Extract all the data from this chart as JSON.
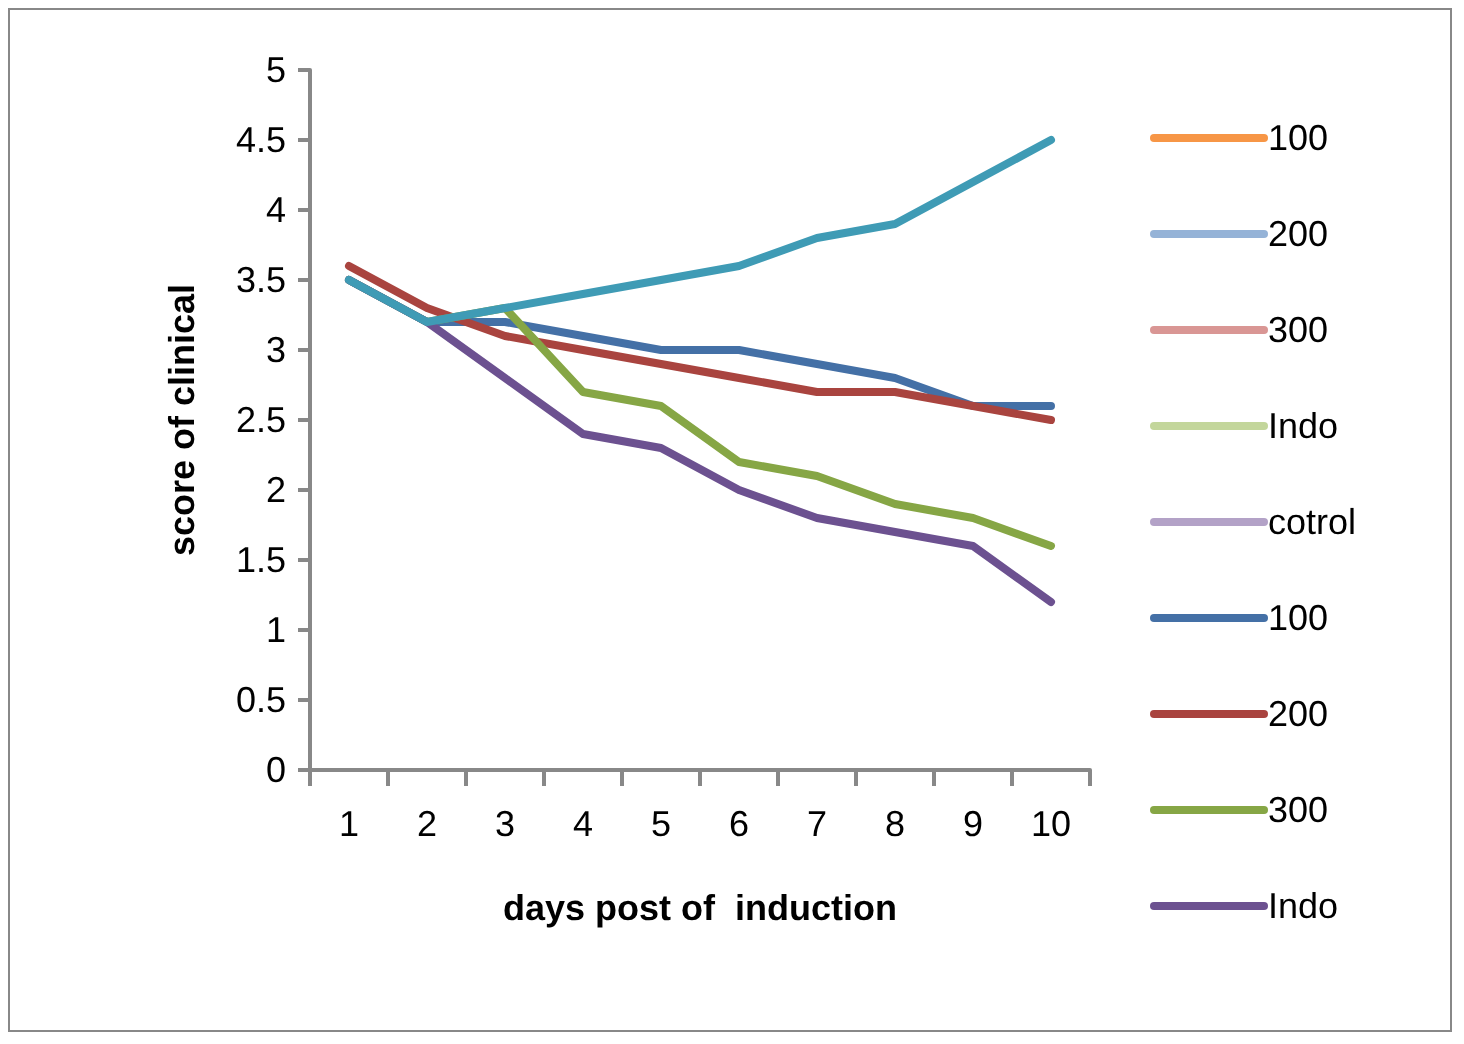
{
  "chart_data": {
    "type": "line",
    "xlabel": "days post of  induction",
    "ylabel": "score of clinical",
    "categories": [
      "1",
      "2",
      "3",
      "4",
      "5",
      "6",
      "7",
      "8",
      "9",
      "10"
    ],
    "series": [
      {
        "name": "100",
        "color": "#f79646",
        "values": [
          null,
          null,
          null,
          null,
          null,
          null,
          null,
          null,
          null,
          null
        ]
      },
      {
        "name": "200",
        "color": "#95b3d7",
        "values": [
          null,
          null,
          null,
          null,
          null,
          null,
          null,
          null,
          null,
          null
        ]
      },
      {
        "name": "300",
        "color": "#d99694",
        "values": [
          null,
          null,
          null,
          null,
          null,
          null,
          null,
          null,
          null,
          null
        ]
      },
      {
        "name": "Indo",
        "color": "#c3d69b",
        "values": [
          null,
          null,
          null,
          null,
          null,
          null,
          null,
          null,
          null,
          null
        ]
      },
      {
        "name": "cotrol",
        "color": "#b3a2c7",
        "values": [
          null,
          null,
          null,
          null,
          null,
          null,
          null,
          null,
          null,
          null
        ]
      },
      {
        "name": "100",
        "color": "#4470a6",
        "values": [
          3.5,
          3.2,
          3.2,
          3.1,
          3.0,
          3.0,
          2.9,
          2.8,
          2.6,
          2.6
        ]
      },
      {
        "name": "200",
        "color": "#a9443f",
        "values": [
          3.6,
          3.3,
          3.1,
          3.0,
          2.9,
          2.8,
          2.7,
          2.7,
          2.6,
          2.5
        ]
      },
      {
        "name": "300",
        "color": "#86a645",
        "values": [
          3.5,
          3.2,
          3.3,
          2.7,
          2.6,
          2.2,
          2.1,
          1.9,
          1.8,
          1.6
        ]
      },
      {
        "name": "Indo",
        "color": "#6c5190",
        "values": [
          3.5,
          3.2,
          2.8,
          2.4,
          2.3,
          2.0,
          1.8,
          1.7,
          1.6,
          1.2
        ]
      },
      {
        "color": "#3f9bb5",
        "values": [
          3.5,
          3.2,
          3.3,
          3.4,
          3.5,
          3.6,
          3.8,
          3.9,
          4.2,
          4.5
        ]
      }
    ],
    "ylim": [
      0,
      5
    ],
    "yticks": [
      0,
      0.5,
      1,
      1.5,
      2,
      2.5,
      3,
      3.5,
      4,
      4.5,
      5
    ],
    "grid": false,
    "legend": "right",
    "marker": "none",
    "line_style": "solid"
  }
}
